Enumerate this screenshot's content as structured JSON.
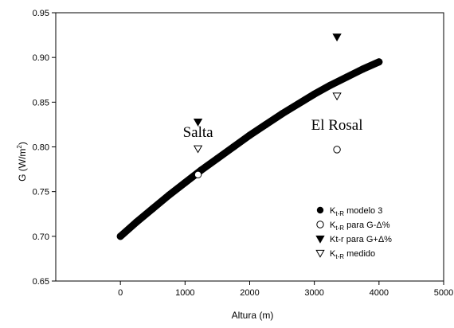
{
  "chart_data": {
    "type": "scatter",
    "xlabel": "Altura (m)",
    "ylabel": "G (W/m",
    "ylabel_sup": "2",
    "ylabel_close": ")",
    "xlim": [
      -1000,
      5000
    ],
    "ylim": [
      0.65,
      0.95
    ],
    "x_ticks": [
      0,
      1000,
      2000,
      3000,
      4000,
      5000
    ],
    "y_ticks": [
      0.65,
      0.7,
      0.75,
      0.8,
      0.85,
      0.9,
      0.95
    ],
    "x_tick_labels": [
      "0",
      "1000",
      "2000",
      "3000",
      "4000",
      "5000"
    ],
    "y_tick_labels": [
      "0.65",
      "0.70",
      "0.75",
      "0.80",
      "0.85",
      "0.90",
      "0.95"
    ],
    "grid": false,
    "legend_position": "bottom-right",
    "annotations": [
      {
        "text": "Salta",
        "x": 1200,
        "y": 0.811
      },
      {
        "text": "El Rosal",
        "x": 3350,
        "y": 0.819
      }
    ],
    "series": [
      {
        "label_main": "K",
        "label_sub": "t-R",
        "label_rest": " modelo 3",
        "marker": "filled-circle",
        "x": [
          0,
          250,
          500,
          750,
          1000,
          1250,
          1500,
          1750,
          2000,
          2250,
          2500,
          2750,
          3000,
          3250,
          3500,
          3750,
          4000
        ],
        "y": [
          0.7,
          0.716,
          0.731,
          0.746,
          0.76,
          0.774,
          0.787,
          0.8,
          0.813,
          0.825,
          0.837,
          0.848,
          0.859,
          0.869,
          0.878,
          0.887,
          0.895
        ]
      },
      {
        "label_main": "K",
        "label_sub": "t-R",
        "label_rest": " para G-Δ%",
        "marker": "open-circle",
        "x": [
          1200,
          3350
        ],
        "y": [
          0.769,
          0.797
        ]
      },
      {
        "label_main": "Kt-r para G+Δ%",
        "label_sub": "",
        "label_rest": "",
        "marker": "filled-triangle-down",
        "x": [
          1200,
          3350
        ],
        "y": [
          0.828,
          0.923
        ]
      },
      {
        "label_main": "K",
        "label_sub": "t-R",
        "label_rest": " medido",
        "marker": "open-triangle-down",
        "x": [
          1200,
          3350
        ],
        "y": [
          0.798,
          0.857
        ]
      }
    ]
  }
}
